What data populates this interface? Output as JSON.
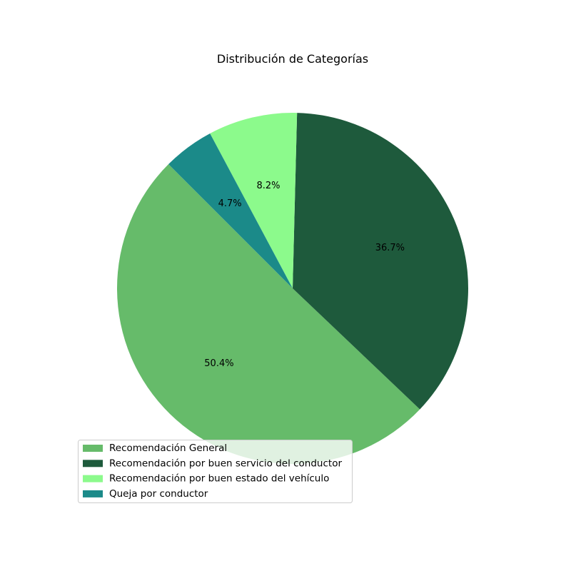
{
  "chart_data": {
    "type": "pie",
    "title": "Distribución de Categorías",
    "start_angle_deg": 135,
    "direction": "counterclockwise",
    "legend_position": "lower-left",
    "slices": [
      {
        "label": "Recomendación General",
        "value": 50.4,
        "pct_label": "50.4%",
        "color": "#66bb6a"
      },
      {
        "label": "Recomendación por buen servicio del conductor",
        "value": 36.7,
        "pct_label": "36.7%",
        "color": "#1e5a3c"
      },
      {
        "label": "Recomendación por buen estado del vehículo",
        "value": 8.2,
        "pct_label": "8.2%",
        "color": "#8cfa8c"
      },
      {
        "label": "Queja por conductor",
        "value": 4.7,
        "pct_label": "4.7%",
        "color": "#1b8a89"
      }
    ]
  }
}
